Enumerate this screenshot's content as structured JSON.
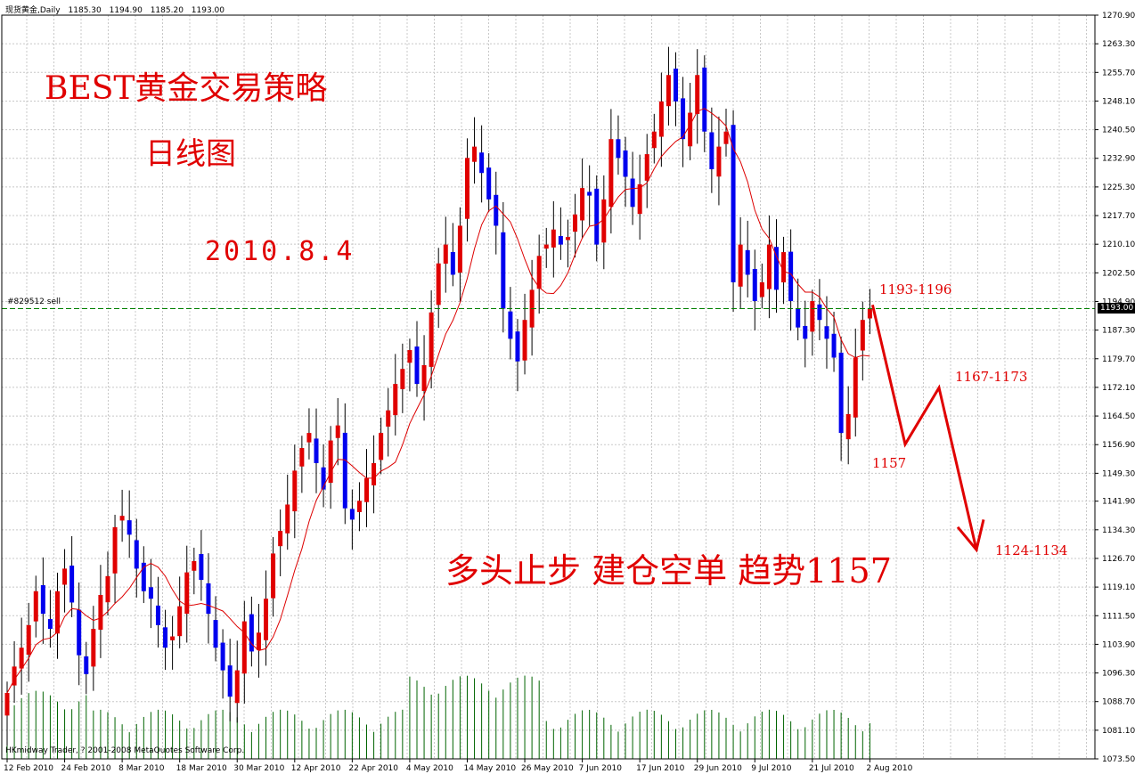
{
  "header": {
    "symbol": "现货黄金,Daily",
    "open": "1185.30",
    "high": "1194.90",
    "low": "1185.20",
    "close": "1193.00"
  },
  "overlay": {
    "title": "BEST黄金交易策略",
    "subtitle": "日线图",
    "date": "2010.8.4",
    "strategy": "多头止步 建仓空单 趋势1157",
    "annotations": [
      "1193-1196",
      "1167-1173",
      "1157",
      "1124-1134"
    ],
    "order_label": "#829512 sell",
    "copyright": "HKmidway Trader, ? 2001-2008 MetaQuotes Software Corp.",
    "current_price": "1193.00"
  },
  "colors": {
    "bull": "#e00000",
    "bear": "#0000ee",
    "ma": "#dd0000",
    "volume": "#006400",
    "order_line": "#008000",
    "grid": "#c8c8c8",
    "annotation": "#e00000"
  },
  "chart_data": {
    "type": "candlestick",
    "title": "",
    "xlabel": "",
    "ylabel": "",
    "ylim": [
      1073.5,
      1270.9
    ],
    "y_ticks": [
      "1270.90",
      "1263.30",
      "1255.70",
      "1248.10",
      "1240.50",
      "1232.90",
      "1225.30",
      "1217.70",
      "1210.10",
      "1202.50",
      "1194.90",
      "1187.30",
      "1179.70",
      "1172.10",
      "1164.50",
      "1156.90",
      "1149.30",
      "1141.90",
      "1134.30",
      "1126.70",
      "1119.10",
      "1111.50",
      "1103.90",
      "1096.30",
      "1088.70",
      "1081.10",
      "1073.50"
    ],
    "x_ticks": [
      {
        "index": 0,
        "label": "12 Feb 2010"
      },
      {
        "index": 8,
        "label": "24 Feb 2010"
      },
      {
        "index": 16,
        "label": "8 Mar 2010"
      },
      {
        "index": 24,
        "label": "18 Mar 2010"
      },
      {
        "index": 32,
        "label": "30 Mar 2010"
      },
      {
        "index": 40,
        "label": "12 Apr 2010"
      },
      {
        "index": 48,
        "label": "22 Apr 2010"
      },
      {
        "index": 56,
        "label": "4 May 2010"
      },
      {
        "index": 64,
        "label": "14 May 2010"
      },
      {
        "index": 72,
        "label": "26 May 2010"
      },
      {
        "index": 80,
        "label": "7 Jun 2010"
      },
      {
        "index": 88,
        "label": "17 Jun 2010"
      },
      {
        "index": 96,
        "label": "29 Jun 2010"
      },
      {
        "index": 104,
        "label": "9 Jul 2010"
      },
      {
        "index": 112,
        "label": "21 Jul 2010"
      },
      {
        "index": 120,
        "label": "2 Aug 2010"
      }
    ],
    "close_path": [
      1091,
      1098,
      1103,
      1109,
      1118,
      1112,
      1108,
      1118,
      1124,
      1115,
      1101,
      1096,
      1108,
      1117,
      1122,
      1135,
      1138,
      1133,
      1124,
      1118,
      1116,
      1109,
      1103,
      1106,
      1114,
      1123,
      1126,
      1121,
      1112,
      1103,
      1097,
      1090,
      1097,
      1110,
      1102,
      1107,
      1116,
      1128,
      1134,
      1141,
      1150,
      1156,
      1160,
      1152,
      1145,
      1158,
      1162,
      1140,
      1137,
      1142,
      1148,
      1152,
      1160,
      1166,
      1173,
      1177,
      1182,
      1173,
      1178,
      1192,
      1205,
      1210,
      1202,
      1215,
      1233,
      1236,
      1229,
      1222,
      1215,
      1193,
      1185,
      1179,
      1190,
      1198,
      1207,
      1210,
      1214,
      1210,
      1212,
      1218,
      1225,
      1223,
      1210,
      1222,
      1238,
      1233,
      1228,
      1220,
      1226,
      1234,
      1240,
      1248,
      1255,
      1248,
      1238,
      1245,
      1255,
      1240,
      1230,
      1236,
      1240,
      1200,
      1210,
      1202,
      1195,
      1200,
      1210,
      1198,
      1208,
      1195,
      1188,
      1185,
      1195,
      1190,
      1185,
      1180,
      1160,
      1165,
      1180,
      1190,
      1193
    ],
    "annotations": [
      {
        "text": "1193-1196"
      },
      {
        "text": "1167-1173"
      },
      {
        "text": "1157"
      },
      {
        "text": "1124-1134"
      }
    ],
    "grid": true
  }
}
